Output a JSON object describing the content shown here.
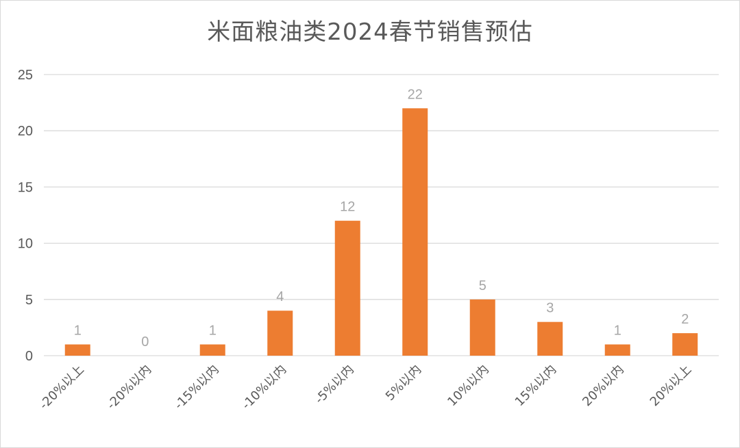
{
  "chart_data": {
    "type": "bar",
    "title": "米面粮油类2024春节销售预估",
    "categories": [
      "-20%以上",
      "-20%以内",
      "-15%以内",
      "-10%以内",
      "-5%以内",
      "5%以内",
      "10%以内",
      "15%以内",
      "20%以内",
      "20%以上"
    ],
    "values": [
      1,
      0,
      1,
      4,
      12,
      22,
      5,
      3,
      1,
      2
    ],
    "ylim": [
      0,
      25
    ],
    "yticks": [
      0,
      5,
      10,
      15,
      20,
      25
    ],
    "grid": true,
    "legend": "none",
    "bar_color": "#ed7d31",
    "data_labels": true
  }
}
